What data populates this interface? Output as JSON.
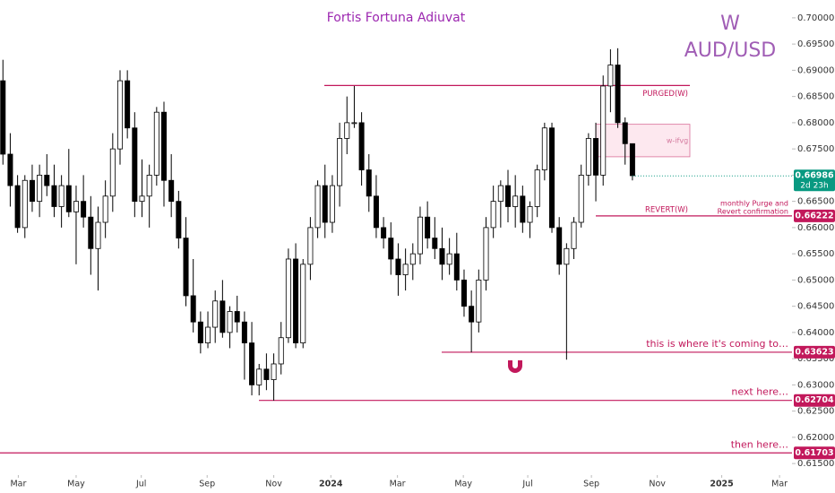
{
  "chart_data": {
    "type": "candlestick",
    "title": "Fortis Fortuna Adiuvat",
    "interval": "W",
    "symbol": "AUD/USD",
    "x": [
      0,
      1,
      2,
      3,
      4,
      5,
      6,
      7,
      8,
      9,
      10,
      11,
      12,
      13,
      14,
      15,
      16,
      17,
      18,
      19,
      20,
      21,
      22,
      23,
      24,
      25,
      26,
      27,
      28,
      29,
      30,
      31,
      32,
      33,
      34,
      35,
      36,
      37,
      38,
      39,
      40,
      41,
      42,
      43,
      44,
      45,
      46,
      47,
      48,
      49,
      50,
      51,
      52,
      53,
      54,
      55,
      56,
      57,
      58,
      59,
      60,
      61,
      62,
      63,
      64,
      65,
      66,
      67,
      68,
      69,
      70,
      71,
      72,
      73,
      74,
      75,
      76,
      77,
      78,
      79,
      80,
      81,
      82,
      83,
      84,
      85,
      86
    ],
    "open": [
      0.688,
      0.674,
      0.668,
      0.66,
      0.669,
      0.665,
      0.67,
      0.668,
      0.664,
      0.668,
      0.663,
      0.665,
      0.662,
      0.656,
      0.661,
      0.666,
      0.675,
      0.688,
      0.679,
      0.665,
      0.666,
      0.67,
      0.682,
      0.669,
      0.665,
      0.658,
      0.647,
      0.642,
      0.638,
      0.641,
      0.646,
      0.64,
      0.644,
      0.642,
      0.638,
      0.63,
      0.633,
      0.631,
      0.634,
      0.639,
      0.654,
      0.638,
      0.653,
      0.66,
      0.668,
      0.661,
      0.668,
      0.677,
      0.68,
      0.68,
      0.671,
      0.666,
      0.66,
      0.658,
      0.654,
      0.651,
      0.653,
      0.655,
      0.662,
      0.658,
      0.656,
      0.653,
      0.655,
      0.65,
      0.645,
      0.642,
      0.65,
      0.66,
      0.665,
      0.668,
      0.664,
      0.666,
      0.661,
      0.664,
      0.671,
      0.679,
      0.66,
      0.653,
      0.656,
      0.661,
      0.67,
      0.677,
      0.67,
      0.687,
      0.691,
      0.68,
      0.676
    ],
    "high": [
      0.692,
      0.678,
      0.67,
      0.67,
      0.672,
      0.672,
      0.674,
      0.672,
      0.67,
      0.675,
      0.668,
      0.67,
      0.666,
      0.664,
      0.669,
      0.678,
      0.69,
      0.69,
      0.682,
      0.673,
      0.672,
      0.683,
      0.684,
      0.674,
      0.667,
      0.662,
      0.654,
      0.644,
      0.644,
      0.648,
      0.65,
      0.645,
      0.647,
      0.644,
      0.642,
      0.634,
      0.636,
      0.636,
      0.642,
      0.656,
      0.657,
      0.654,
      0.662,
      0.669,
      0.672,
      0.67,
      0.68,
      0.685,
      0.687,
      0.682,
      0.674,
      0.67,
      0.662,
      0.661,
      0.657,
      0.656,
      0.657,
      0.664,
      0.665,
      0.662,
      0.66,
      0.658,
      0.659,
      0.652,
      0.648,
      0.652,
      0.662,
      0.668,
      0.669,
      0.671,
      0.67,
      0.668,
      0.665,
      0.672,
      0.68,
      0.68,
      0.662,
      0.657,
      0.662,
      0.672,
      0.678,
      0.68,
      0.689,
      0.694,
      0.6942,
      0.681,
      0.676
    ],
    "low": [
      0.672,
      0.664,
      0.659,
      0.658,
      0.663,
      0.662,
      0.666,
      0.662,
      0.66,
      0.662,
      0.653,
      0.66,
      0.651,
      0.648,
      0.658,
      0.663,
      0.672,
      0.677,
      0.662,
      0.662,
      0.66,
      0.668,
      0.664,
      0.662,
      0.656,
      0.645,
      0.64,
      0.636,
      0.637,
      0.638,
      0.639,
      0.637,
      0.64,
      0.631,
      0.628,
      0.628,
      0.629,
      0.627,
      0.632,
      0.638,
      0.637,
      0.637,
      0.65,
      0.658,
      0.658,
      0.659,
      0.664,
      0.674,
      0.679,
      0.668,
      0.663,
      0.658,
      0.656,
      0.651,
      0.647,
      0.648,
      0.65,
      0.653,
      0.656,
      0.654,
      0.65,
      0.651,
      0.648,
      0.643,
      0.6362,
      0.64,
      0.648,
      0.658,
      0.66,
      0.661,
      0.66,
      0.659,
      0.658,
      0.662,
      0.669,
      0.659,
      0.651,
      0.6348,
      0.654,
      0.66,
      0.668,
      0.665,
      0.668,
      0.682,
      0.679,
      0.672,
      0.669
    ],
    "close": [
      0.674,
      0.668,
      0.66,
      0.669,
      0.665,
      0.67,
      0.668,
      0.664,
      0.668,
      0.663,
      0.665,
      0.662,
      0.656,
      0.661,
      0.666,
      0.675,
      0.688,
      0.679,
      0.665,
      0.666,
      0.67,
      0.682,
      0.669,
      0.665,
      0.658,
      0.647,
      0.642,
      0.638,
      0.641,
      0.646,
      0.64,
      0.644,
      0.642,
      0.638,
      0.63,
      0.633,
      0.631,
      0.634,
      0.639,
      0.654,
      0.638,
      0.653,
      0.66,
      0.668,
      0.661,
      0.668,
      0.677,
      0.68,
      0.68,
      0.671,
      0.666,
      0.66,
      0.658,
      0.654,
      0.651,
      0.653,
      0.655,
      0.662,
      0.658,
      0.656,
      0.653,
      0.655,
      0.65,
      0.645,
      0.642,
      0.65,
      0.66,
      0.665,
      0.668,
      0.664,
      0.666,
      0.661,
      0.664,
      0.671,
      0.679,
      0.66,
      0.653,
      0.656,
      0.661,
      0.67,
      0.677,
      0.67,
      0.687,
      0.691,
      0.68,
      0.676,
      0.6699
    ],
    "up_color": "#ffffff",
    "down_color": "#000000",
    "xlim": [
      -0.4,
      107.8
    ],
    "xticks": [
      {
        "value": 2.1,
        "label": "Mar"
      },
      {
        "value": 10.0,
        "label": "May"
      },
      {
        "value": 18.9,
        "label": "Jul"
      },
      {
        "value": 27.9,
        "label": "Sep"
      },
      {
        "value": 37.0,
        "label": "Nov"
      },
      {
        "value": 44.8,
        "label": "2024"
      },
      {
        "value": 53.9,
        "label": "Mar"
      },
      {
        "value": 62.9,
        "label": "May"
      },
      {
        "value": 71.7,
        "label": "Jul"
      },
      {
        "value": 80.4,
        "label": "Sep"
      },
      {
        "value": 89.4,
        "label": "Nov"
      },
      {
        "value": 98.2,
        "label": "2025"
      },
      {
        "value": 106.1,
        "label": "Mar"
      }
    ],
    "ylim": [
      0.6128,
      0.7034
    ],
    "yticks": [
      {
        "value": 0.615,
        "label": "0.61500"
      },
      {
        "value": 0.62,
        "label": "0.62000"
      },
      {
        "value": 0.625,
        "label": "0.62500"
      },
      {
        "value": 0.63,
        "label": "0.63000"
      },
      {
        "value": 0.635,
        "label": "0.63500"
      },
      {
        "value": 0.64,
        "label": "0.64000"
      },
      {
        "value": 0.645,
        "label": "0.64500"
      },
      {
        "value": 0.65,
        "label": "0.65000"
      },
      {
        "value": 0.655,
        "label": "0.65500"
      },
      {
        "value": 0.66,
        "label": "0.66000"
      },
      {
        "value": 0.665,
        "label": "0.66500"
      },
      {
        "value": 0.67,
        "label": "0.67000"
      },
      {
        "value": 0.675,
        "label": "0.67500"
      },
      {
        "value": 0.68,
        "label": "0.68000"
      },
      {
        "value": 0.685,
        "label": "0.68500"
      },
      {
        "value": 0.69,
        "label": "0.69000"
      },
      {
        "value": 0.695,
        "label": "0.69500"
      },
      {
        "value": 0.7,
        "label": "0.70000"
      }
    ],
    "last_price": {
      "value": 0.66986,
      "label": "0.66986",
      "countdown": "2d 23h",
      "color": "#089981"
    },
    "zones": [
      {
        "label": "w-ifvg",
        "top": 0.6797,
        "bottom": 0.6735
      }
    ],
    "levels": [
      {
        "name": "PURGED(W)",
        "value": 0.6871
      },
      {
        "name": "REVERT(W)",
        "value": 0.66222,
        "price_label": "0.66222",
        "note": [
          "monthly Purge and",
          "Revert confirmation"
        ]
      }
    ],
    "targets": [
      {
        "note": "this is where it's coming to…",
        "value": 0.63623,
        "price_label": "0.63623"
      },
      {
        "note": "next here…",
        "value": 0.62704,
        "price_label": "0.62704"
      },
      {
        "note": "then here…",
        "value": 0.61703,
        "price_label": "0.61703"
      }
    ],
    "level_color": "#c2185b"
  }
}
